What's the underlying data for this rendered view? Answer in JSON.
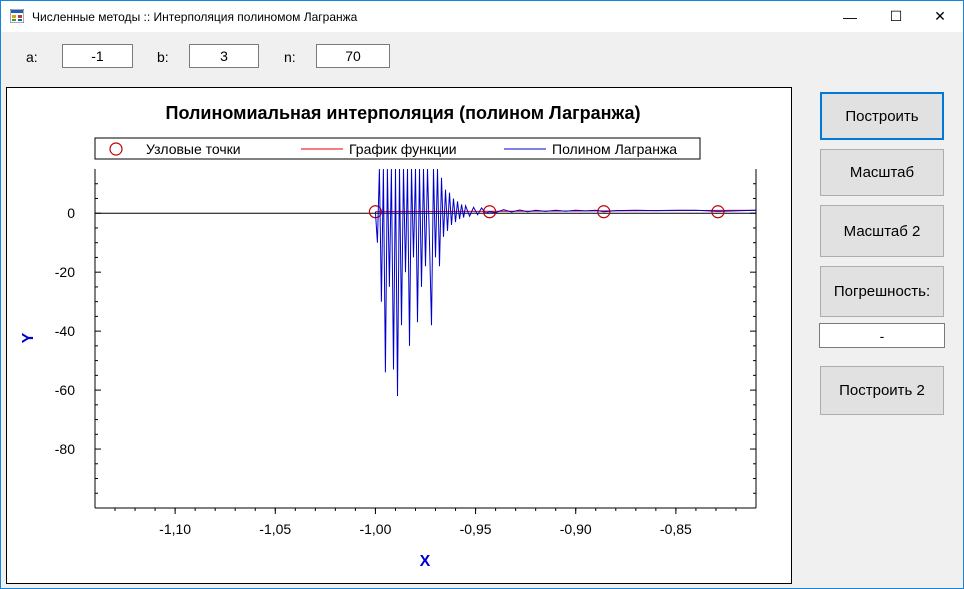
{
  "window": {
    "title": "Численные методы :: Интерполяция полиномом Лагранжа",
    "minimize_glyph": "—",
    "maximize_glyph": "☐",
    "close_glyph": "✕"
  },
  "params": {
    "a_label": "a:",
    "a_value": "-1",
    "b_label": "b:",
    "b_value": "3",
    "n_label": "n:",
    "n_value": "70"
  },
  "buttons": {
    "build": "Построить",
    "scale": "Масштаб",
    "scale2": "Масштаб 2",
    "error": "Погрешность:",
    "error_value": "-",
    "build2": "Построить 2"
  },
  "colors": {
    "accent": "#0078d7",
    "nodes": "#c00000",
    "function": "#e00000",
    "polynomial": "#0000cc",
    "axis_label": "#0000cc"
  },
  "chart_data": {
    "type": "line",
    "title": "Полиномиальная интерполяция (полином Лагранжа)",
    "xlabel": "X",
    "ylabel": "Y",
    "xlim": [
      -1.14,
      -0.81
    ],
    "ylim": [
      -100,
      15
    ],
    "x_ticks": [
      -1.1,
      -1.05,
      -1.0,
      -0.95,
      -0.9,
      -0.85
    ],
    "x_tick_labels": [
      "-1,10",
      "-1,05",
      "-1,00",
      "-0,95",
      "-0,90",
      "-0,85"
    ],
    "y_ticks": [
      0,
      -20,
      -40,
      -60,
      -80
    ],
    "y_tick_labels": [
      "0",
      "-20",
      "-40",
      "-60",
      "-80"
    ],
    "legend": {
      "placement": "top",
      "entries": [
        "Узловые точки",
        "График функции",
        "Полином Лагранжа"
      ]
    },
    "series": [
      {
        "name": "Узловые точки",
        "kind": "markers",
        "x": [
          -1.0,
          -0.943,
          -0.886,
          -0.829
        ],
        "y": [
          0.5,
          0.5,
          0.5,
          0.5
        ]
      },
      {
        "name": "График функции",
        "kind": "line",
        "x": [
          -1.0,
          -0.81
        ],
        "y": [
          0.5,
          1.0
        ]
      },
      {
        "name": "Полином Лагранжа",
        "kind": "line",
        "x": [
          -1.0,
          -0.999,
          -0.998,
          -0.997,
          -0.996,
          -0.995,
          -0.994,
          -0.993,
          -0.992,
          -0.991,
          -0.99,
          -0.989,
          -0.988,
          -0.987,
          -0.986,
          -0.985,
          -0.984,
          -0.983,
          -0.982,
          -0.981,
          -0.98,
          -0.979,
          -0.978,
          -0.977,
          -0.976,
          -0.975,
          -0.974,
          -0.973,
          -0.972,
          -0.971,
          -0.97,
          -0.969,
          -0.968,
          -0.967,
          -0.966,
          -0.965,
          -0.964,
          -0.963,
          -0.962,
          -0.961,
          -0.96,
          -0.959,
          -0.958,
          -0.957,
          -0.956,
          -0.955,
          -0.953,
          -0.951,
          -0.949,
          -0.947,
          -0.945,
          -0.943,
          -0.94,
          -0.936,
          -0.932,
          -0.928,
          -0.924,
          -0.92,
          -0.915,
          -0.91,
          -0.905,
          -0.9,
          -0.895,
          -0.89,
          -0.886,
          -0.88,
          -0.87,
          -0.86,
          -0.85,
          -0.84,
          -0.829,
          -0.81
        ],
        "y": [
          0.5,
          -10,
          15,
          -30,
          15,
          -54,
          15,
          -25,
          15,
          -53,
          15,
          -62,
          15,
          -38,
          15,
          -20,
          15,
          -45,
          15,
          -15,
          15,
          -37,
          15,
          -25,
          15,
          -18,
          15,
          -10,
          -38,
          15,
          -15,
          15,
          -18,
          12,
          -8,
          8,
          -6,
          7,
          -4,
          5,
          -3,
          4,
          -2,
          3,
          -1.5,
          2.5,
          -1,
          2,
          -0.5,
          1.8,
          0,
          0.5,
          0.2,
          1.2,
          0.4,
          1.1,
          0.5,
          1.0,
          0.6,
          1.0,
          0.7,
          1.0,
          0.8,
          1.0,
          0.5,
          0.9,
          1.0,
          0.9,
          1.0,
          1.0,
          0.6,
          1.0
        ]
      }
    ]
  }
}
